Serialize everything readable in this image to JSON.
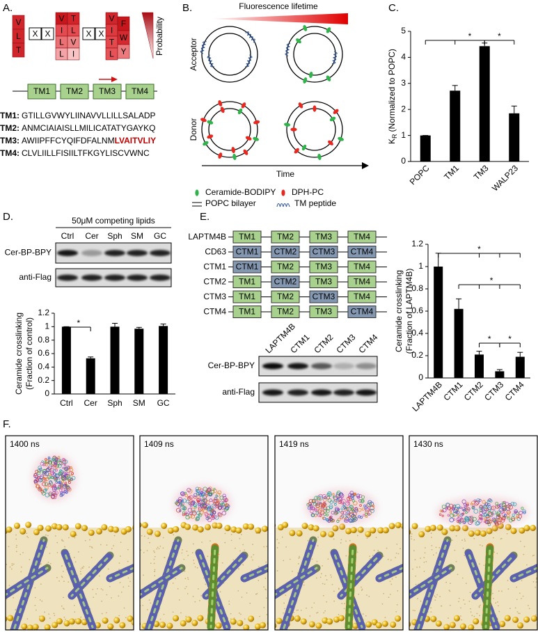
{
  "panel_a": {
    "label": "A.",
    "motif": [
      {
        "letters": [
          "V",
          "L",
          "T"
        ],
        "colors": [
          "#d0262b",
          "#d0262b",
          "#d0262b"
        ]
      },
      {
        "letters": [
          "X"
        ],
        "colors": [
          "#ffffff"
        ]
      },
      {
        "letters": [
          "X"
        ],
        "colors": [
          "#ffffff"
        ]
      },
      {
        "letters": [
          "V",
          "I",
          "L",
          "L"
        ],
        "colors": [
          "#c8161d",
          "#e44a4f",
          "#ec7175",
          "#f4a4a6"
        ]
      },
      {
        "letters": [
          "T",
          "L",
          "V",
          "I"
        ],
        "colors": [
          "#d4242a",
          "#e64b50",
          "#ee8386",
          "#f7c3c4"
        ]
      },
      {
        "letters": [
          "X"
        ],
        "colors": [
          "#ffffff"
        ]
      },
      {
        "letters": [
          "X"
        ],
        "colors": [
          "#ffffff"
        ]
      },
      {
        "letters": [
          "V",
          "I",
          "T",
          "L"
        ],
        "colors": [
          "#d0262b",
          "#dc3a3f",
          "#e2484c",
          "#e65257"
        ]
      },
      {
        "letters": [
          "F",
          "W",
          "Y"
        ],
        "colors": [
          "#c8161d",
          "#d42a2f",
          "#ec7a7d"
        ]
      }
    ],
    "probability_label": "Probability",
    "domains": [
      "TM1",
      "TM2",
      "TM3",
      "TM4"
    ],
    "sequences": [
      {
        "name": "TM1:",
        "sequence": "GTILLGVWYLIINAVVLLILLSALADP"
      },
      {
        "name": "TM2:",
        "sequence": "ANMCIAIAISLLMILICATATYGAYKQ"
      },
      {
        "name": "TM3:",
        "sequence": "AWIIPFFCYQIFDFALNM",
        "highlight": "LVAITVLIY"
      },
      {
        "name": "TM4:",
        "sequence": "CLVLIILLFISIILTFKGYLISCVWNC"
      }
    ]
  },
  "panel_b": {
    "label": "B.",
    "header": "Fluorescence lifetime",
    "rows": [
      "Acceptor",
      "Donor"
    ],
    "x_axis": "Time",
    "legend": [
      "Ceramide-BODIPY",
      "DPH-PC",
      "POPC bilayer",
      "TM peptide"
    ]
  },
  "chart_data": [
    {
      "type": "bar",
      "panel_label": "C.",
      "categories": [
        "POPC",
        "TM1",
        "TM3",
        "WALP23"
      ],
      "values": [
        1,
        2.72,
        4.43,
        1.85
      ],
      "errors": [
        0,
        0.2,
        0.12,
        0.28
      ],
      "color": "#000000",
      "ylim": [
        0,
        5
      ],
      "yticks": [
        0,
        1,
        2,
        3,
        4,
        5
      ],
      "y_label": {
        "symbol": "K",
        "subscript": "R",
        "text": "(Normalized to POPC)"
      },
      "annotations": [
        "*",
        "*"
      ]
    },
    {
      "type": "bar",
      "panel_label": "D.",
      "categories": [
        "Ctrl",
        "Cer",
        "Sph",
        "SM",
        "GC"
      ],
      "values": [
        1,
        0.53,
        1.0,
        0.97,
        1.01
      ],
      "errors": [
        0,
        0.02,
        0.05,
        0.02,
        0.03
      ],
      "color": "#000000",
      "ylim": [
        0,
        1.2
      ],
      "yticks": [
        0,
        0.2,
        0.4,
        0.6,
        0.8,
        1,
        1.2
      ],
      "y_label": [
        "Ceramide crosslinking",
        "(Fraction of control)"
      ],
      "annotations": [
        "*"
      ]
    },
    {
      "type": "bar",
      "panel_label": "E.",
      "categories": [
        "LAPTM4B",
        "CTM1",
        "CTM2",
        "CTM3",
        "CTM4"
      ],
      "values": [
        1,
        0.62,
        0.21,
        0.06,
        0.19
      ],
      "errors": [
        0.12,
        0.09,
        0.03,
        0.015,
        0.04
      ],
      "color": "#000000",
      "ylim": [
        0,
        1.2
      ],
      "yticks": [
        0,
        0.2,
        0.4,
        0.6,
        0.8,
        1,
        1.2
      ],
      "y_label": [
        "Ceramide crosslinking",
        "(Fraction of LAPTM4B)"
      ],
      "annotations": [
        "*",
        "*",
        "*",
        "*"
      ]
    }
  ],
  "panel_d": {
    "lanes_title": "50μM competing lipids",
    "lanes": [
      "Ctrl",
      "Cer",
      "Sph",
      "SM",
      "GC"
    ],
    "blot_rows": [
      "Cer-BP-BPY",
      "anti-Flag"
    ]
  },
  "panel_e": {
    "tm_color": "#a9d18e",
    "ctm_color": "#8497b0",
    "rows": [
      {
        "name": "LAPTM4B",
        "domains": [
          "TM1",
          "TM2",
          "TM3",
          "TM4"
        ]
      },
      {
        "name": "CD63",
        "domains": [
          "CTM1",
          "CTM2",
          "CTM3",
          "CTM4"
        ]
      },
      {
        "name": "CTM1",
        "domains": [
          "CTM1",
          "TM2",
          "TM3",
          "TM4"
        ]
      },
      {
        "name": "CTM2",
        "domains": [
          "TM1",
          "CTM2",
          "TM3",
          "TM4"
        ]
      },
      {
        "name": "CTM3",
        "domains": [
          "TM1",
          "TM2",
          "CTM3",
          "TM4"
        ]
      },
      {
        "name": "CTM4",
        "domains": [
          "TM1",
          "TM2",
          "TM3",
          "CTM4"
        ]
      }
    ],
    "lanes": [
      "LAPTM4B",
      "CTM1",
      "CTM2",
      "CTM3",
      "CTM4"
    ],
    "blot_rows": [
      "Cer-BP-BPY",
      "anti-Flag"
    ]
  },
  "panel_f": {
    "label": "F.",
    "frames": [
      "1400 ns",
      "1409 ns",
      "1419 ns",
      "1430 ns"
    ]
  }
}
